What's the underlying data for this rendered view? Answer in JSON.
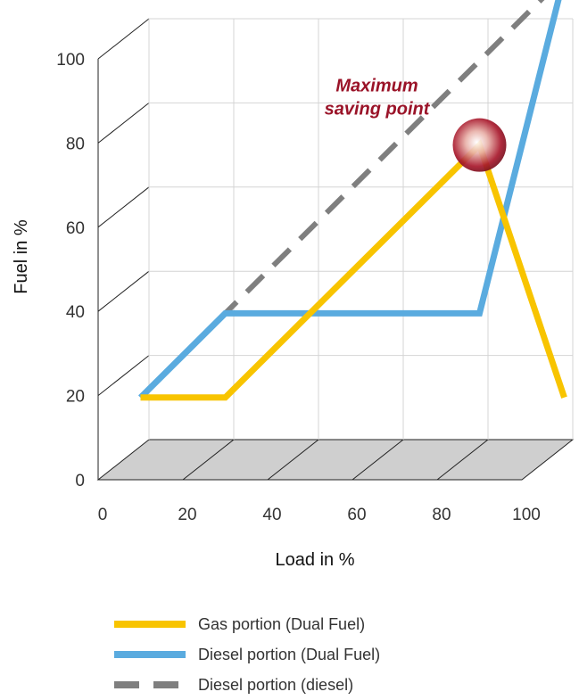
{
  "chart_data": {
    "type": "line",
    "xlabel": "Load in %",
    "ylabel": "Fuel in %",
    "x_ticks": [
      "0",
      "20",
      "40",
      "60",
      "80",
      "100"
    ],
    "y_ticks": [
      "0",
      "20",
      "40",
      "60",
      "80",
      "100"
    ],
    "xlim": [
      0,
      100
    ],
    "ylim": [
      0,
      100
    ],
    "grid": true,
    "perspective_3d": true,
    "legend_position": "bottom",
    "series": [
      {
        "name": "Gas portion (Dual Fuel)",
        "color": "#f8c400",
        "style": "solid",
        "x": [
          10,
          30,
          90,
          110
        ],
        "y": [
          10,
          10,
          70,
          10
        ]
      },
      {
        "name": "Diesel portion (Dual Fuel)",
        "color": "#5aabdf",
        "style": "solid",
        "x": [
          10,
          30,
          90,
          110
        ],
        "y": [
          10,
          30,
          30,
          110
        ]
      },
      {
        "name": "Diesel portion (diesel)",
        "color": "#7f7f7f",
        "style": "dashed",
        "x": [
          10,
          110
        ],
        "y": [
          10,
          110
        ]
      }
    ],
    "annotations": [
      {
        "text_lines": [
          "Maximum",
          "saving point"
        ],
        "x": 90,
        "y": 70,
        "color": "#9a1328"
      }
    ]
  }
}
